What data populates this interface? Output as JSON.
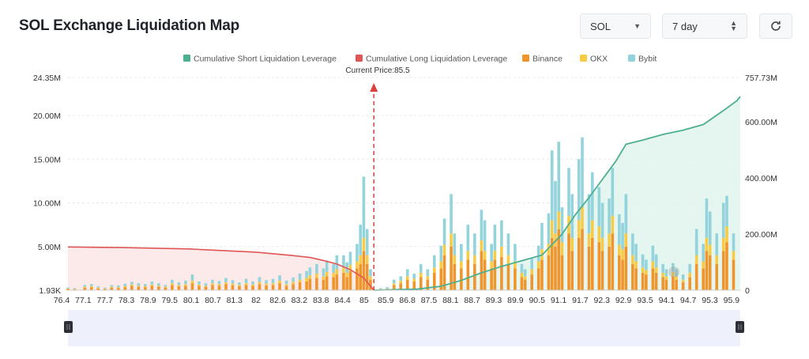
{
  "header": {
    "title": "SOL Exchange Liquidation Map",
    "coin_select": "SOL",
    "period_select": "7 day",
    "refresh_icon": "refresh-icon"
  },
  "colors": {
    "short_line": "#4caf8f",
    "short_fill": "#dff2ec",
    "long_line": "#e05656",
    "long_fill": "#fbe3e3",
    "binance": "#f0952b",
    "okx": "#f8cb44",
    "bybit": "#93d3dc",
    "price_marker": "#d9413a"
  },
  "chart_data": {
    "type": "bar",
    "legend": [
      {
        "name": "Cumulative Short Liquidation Leverage",
        "color": "#4caf8f"
      },
      {
        "name": "Cumulative Long Liquidation Leverage",
        "color": "#e05656"
      },
      {
        "name": "Binance",
        "color": "#f0952b"
      },
      {
        "name": "OKX",
        "color": "#f8cb44"
      },
      {
        "name": "Bybit",
        "color": "#93d3dc"
      }
    ],
    "current_price_label": "Current Price:85.5",
    "current_price": 85.5,
    "x_tick_labels": [
      "76.4",
      "77.1",
      "77.7",
      "78.3",
      "78.9",
      "79.5",
      "80.1",
      "80.7",
      "81.3",
      "82",
      "82.6",
      "83.2",
      "83.8",
      "84.4",
      "85",
      "85.9",
      "86.8",
      "87.5",
      "88.1",
      "88.7",
      "89.3",
      "89.9",
      "90.5",
      "91.1",
      "91.7",
      "92.3",
      "92.9",
      "93.5",
      "94.1",
      "94.7",
      "95.3",
      "95.9"
    ],
    "xlim": [
      76.4,
      96.4
    ],
    "y_left_ticks": [
      "1.93K",
      "5.00M",
      "10.00M",
      "15.00M",
      "20.00M",
      "24.35M"
    ],
    "y_left_range": [
      0,
      24350000
    ],
    "y_right_ticks": [
      "0",
      "200.00M",
      "400.00M",
      "600.00M",
      "757.73M"
    ],
    "y_right_range": [
      0,
      757730000
    ],
    "grid": true,
    "legend_position": "top-center",
    "long_cumulative": [
      [
        76.4,
        4.95
      ],
      [
        78,
        4.88
      ],
      [
        80,
        4.72
      ],
      [
        82,
        4.35
      ],
      [
        83,
        4.0
      ],
      [
        83.6,
        3.75
      ],
      [
        84.0,
        3.4
      ],
      [
        84.4,
        3.0
      ],
      [
        84.8,
        2.35
      ],
      [
        85.2,
        1.4
      ],
      [
        85.5,
        0.0
      ]
    ],
    "short_cumulative": [
      [
        85.5,
        0
      ],
      [
        86.8,
        4
      ],
      [
        87.5,
        14
      ],
      [
        88.1,
        35
      ],
      [
        88.7,
        62
      ],
      [
        89.3,
        85
      ],
      [
        89.9,
        105
      ],
      [
        90.5,
        125
      ],
      [
        91.1,
        200
      ],
      [
        91.5,
        270
      ],
      [
        91.9,
        330
      ],
      [
        92.3,
        395
      ],
      [
        92.7,
        460
      ],
      [
        93.0,
        520
      ],
      [
        93.5,
        535
      ],
      [
        94.1,
        555
      ],
      [
        94.7,
        570
      ],
      [
        95.3,
        590
      ],
      [
        95.9,
        640
      ],
      [
        96.3,
        675
      ],
      [
        96.4,
        690
      ]
    ],
    "bars": [
      [
        76.4,
        0.15,
        0.05,
        0.1
      ],
      [
        76.6,
        0.1,
        0.05,
        0.1
      ],
      [
        76.9,
        0.3,
        0.1,
        0.2
      ],
      [
        77.1,
        0.35,
        0.1,
        0.25
      ],
      [
        77.3,
        0.2,
        0.1,
        0.15
      ],
      [
        77.5,
        0.15,
        0.05,
        0.1
      ],
      [
        77.7,
        0.3,
        0.1,
        0.2
      ],
      [
        77.9,
        0.25,
        0.1,
        0.2
      ],
      [
        78.1,
        0.35,
        0.1,
        0.3
      ],
      [
        78.3,
        0.5,
        0.15,
        0.3
      ],
      [
        78.5,
        0.4,
        0.1,
        0.3
      ],
      [
        78.7,
        0.35,
        0.1,
        0.25
      ],
      [
        78.9,
        0.5,
        0.15,
        0.35
      ],
      [
        79.1,
        0.4,
        0.1,
        0.3
      ],
      [
        79.3,
        0.3,
        0.1,
        0.2
      ],
      [
        79.5,
        0.6,
        0.2,
        0.4
      ],
      [
        79.7,
        0.45,
        0.15,
        0.3
      ],
      [
        79.9,
        0.5,
        0.2,
        0.4
      ],
      [
        80.1,
        0.8,
        0.3,
        0.7
      ],
      [
        80.3,
        0.5,
        0.15,
        0.35
      ],
      [
        80.5,
        0.4,
        0.1,
        0.3
      ],
      [
        80.7,
        0.6,
        0.2,
        0.4
      ],
      [
        80.9,
        0.5,
        0.2,
        0.35
      ],
      [
        81.1,
        0.7,
        0.2,
        0.5
      ],
      [
        81.3,
        0.55,
        0.2,
        0.4
      ],
      [
        81.5,
        0.45,
        0.15,
        0.3
      ],
      [
        81.7,
        0.6,
        0.2,
        0.5
      ],
      [
        81.9,
        0.5,
        0.15,
        0.35
      ],
      [
        82.1,
        0.7,
        0.25,
        0.55
      ],
      [
        82.3,
        0.55,
        0.2,
        0.4
      ],
      [
        82.5,
        0.6,
        0.2,
        0.5
      ],
      [
        82.7,
        0.8,
        0.3,
        0.6
      ],
      [
        82.9,
        0.5,
        0.2,
        0.4
      ],
      [
        83.1,
        0.7,
        0.25,
        0.5
      ],
      [
        83.3,
        0.9,
        0.3,
        0.7
      ],
      [
        83.5,
        1.0,
        0.4,
        0.8
      ],
      [
        83.6,
        1.3,
        0.4,
        0.9
      ],
      [
        83.8,
        1.4,
        0.5,
        1.1
      ],
      [
        84.0,
        1.2,
        0.4,
        0.9
      ],
      [
        84.1,
        1.6,
        0.5,
        1.3
      ],
      [
        84.3,
        1.5,
        0.5,
        1.0
      ],
      [
        84.4,
        1.8,
        0.6,
        1.6
      ],
      [
        84.6,
        2.0,
        0.6,
        1.4
      ],
      [
        84.7,
        1.5,
        0.5,
        1.2
      ],
      [
        84.8,
        2.2,
        0.7,
        1.5
      ],
      [
        85.0,
        2.5,
        0.8,
        2.0
      ],
      [
        85.1,
        3.0,
        1.0,
        3.5
      ],
      [
        85.2,
        4.5,
        1.5,
        7.0
      ],
      [
        85.3,
        3.0,
        1.0,
        3.0
      ],
      [
        85.4,
        1.2,
        0.4,
        0.8
      ],
      [
        85.7,
        0.1,
        0.05,
        0.1
      ],
      [
        85.9,
        0.15,
        0.05,
        0.15
      ],
      [
        86.1,
        0.6,
        0.2,
        0.4
      ],
      [
        86.3,
        0.8,
        0.3,
        0.5
      ],
      [
        86.5,
        1.2,
        0.4,
        0.8
      ],
      [
        86.7,
        1.0,
        0.3,
        0.6
      ],
      [
        86.9,
        1.5,
        0.5,
        1.0
      ],
      [
        87.1,
        1.2,
        0.4,
        0.8
      ],
      [
        87.3,
        2.0,
        0.6,
        1.4
      ],
      [
        87.5,
        2.5,
        0.8,
        1.8
      ],
      [
        87.6,
        4.0,
        1.2,
        3.0
      ],
      [
        87.8,
        5.0,
        1.5,
        4.5
      ],
      [
        87.9,
        3.0,
        1.0,
        2.5
      ],
      [
        88.1,
        2.5,
        0.8,
        2.0
      ],
      [
        88.3,
        3.5,
        1.0,
        3.0
      ],
      [
        88.5,
        3.0,
        1.0,
        2.5
      ],
      [
        88.7,
        4.5,
        1.2,
        3.5
      ],
      [
        88.8,
        3.5,
        1.0,
        3.5
      ],
      [
        89.0,
        2.5,
        0.8,
        2.0
      ],
      [
        89.1,
        3.5,
        1.0,
        3.0
      ],
      [
        89.3,
        3.8,
        1.2,
        3.0
      ],
      [
        89.5,
        3.0,
        1.0,
        2.5
      ],
      [
        89.7,
        2.5,
        0.8,
        2.0
      ],
      [
        89.9,
        1.5,
        0.5,
        1.0
      ],
      [
        90.0,
        1.2,
        0.4,
        0.8
      ],
      [
        90.2,
        1.8,
        0.6,
        1.2
      ],
      [
        90.4,
        2.5,
        0.8,
        1.8
      ],
      [
        90.5,
        3.5,
        1.2,
        3.0
      ],
      [
        90.7,
        4.0,
        1.3,
        3.5
      ],
      [
        90.8,
        6.0,
        2.0,
        8.0
      ],
      [
        90.9,
        5.0,
        1.5,
        6.0
      ],
      [
        91.0,
        7.0,
        2.0,
        8.0
      ],
      [
        91.1,
        4.0,
        1.5,
        4.0
      ],
      [
        91.3,
        6.5,
        2.0,
        5.5
      ],
      [
        91.4,
        4.5,
        1.5,
        5.0
      ],
      [
        91.6,
        6.0,
        2.0,
        7.0
      ],
      [
        91.7,
        7.0,
        2.5,
        8.0
      ],
      [
        91.9,
        5.0,
        1.5,
        4.5
      ],
      [
        92.0,
        6.0,
        2.0,
        5.5
      ],
      [
        92.2,
        5.5,
        1.8,
        4.5
      ],
      [
        92.3,
        4.5,
        1.5,
        4.0
      ],
      [
        92.5,
        5.0,
        1.5,
        4.0
      ],
      [
        92.6,
        6.5,
        2.0,
        5.5
      ],
      [
        92.8,
        4.0,
        1.2,
        3.5
      ],
      [
        92.9,
        3.5,
        1.2,
        3.0
      ],
      [
        93.0,
        5.0,
        1.5,
        4.5
      ],
      [
        93.2,
        3.0,
        1.0,
        2.5
      ],
      [
        93.3,
        2.5,
        0.8,
        2.0
      ],
      [
        93.5,
        2.0,
        0.6,
        1.5
      ],
      [
        93.6,
        1.8,
        0.5,
        1.2
      ],
      [
        93.8,
        2.5,
        0.8,
        1.8
      ],
      [
        93.9,
        2.0,
        0.6,
        1.5
      ],
      [
        94.1,
        1.5,
        0.5,
        1.0
      ],
      [
        94.2,
        1.2,
        0.4,
        0.8
      ],
      [
        94.4,
        1.6,
        0.5,
        1.0
      ],
      [
        94.5,
        1.2,
        0.4,
        0.8
      ],
      [
        94.7,
        0.9,
        0.3,
        0.6
      ],
      [
        94.9,
        1.5,
        0.5,
        1.0
      ],
      [
        95.1,
        3.0,
        1.0,
        3.0
      ],
      [
        95.3,
        2.5,
        0.8,
        2.0
      ],
      [
        95.4,
        4.5,
        1.5,
        4.5
      ],
      [
        95.5,
        4.0,
        1.2,
        3.8
      ],
      [
        95.7,
        3.0,
        1.0,
        2.5
      ],
      [
        95.9,
        4.5,
        1.5,
        4.0
      ],
      [
        96.0,
        5.5,
        1.8,
        3.5
      ],
      [
        96.2,
        3.5,
        1.0,
        2.0
      ]
    ]
  }
}
